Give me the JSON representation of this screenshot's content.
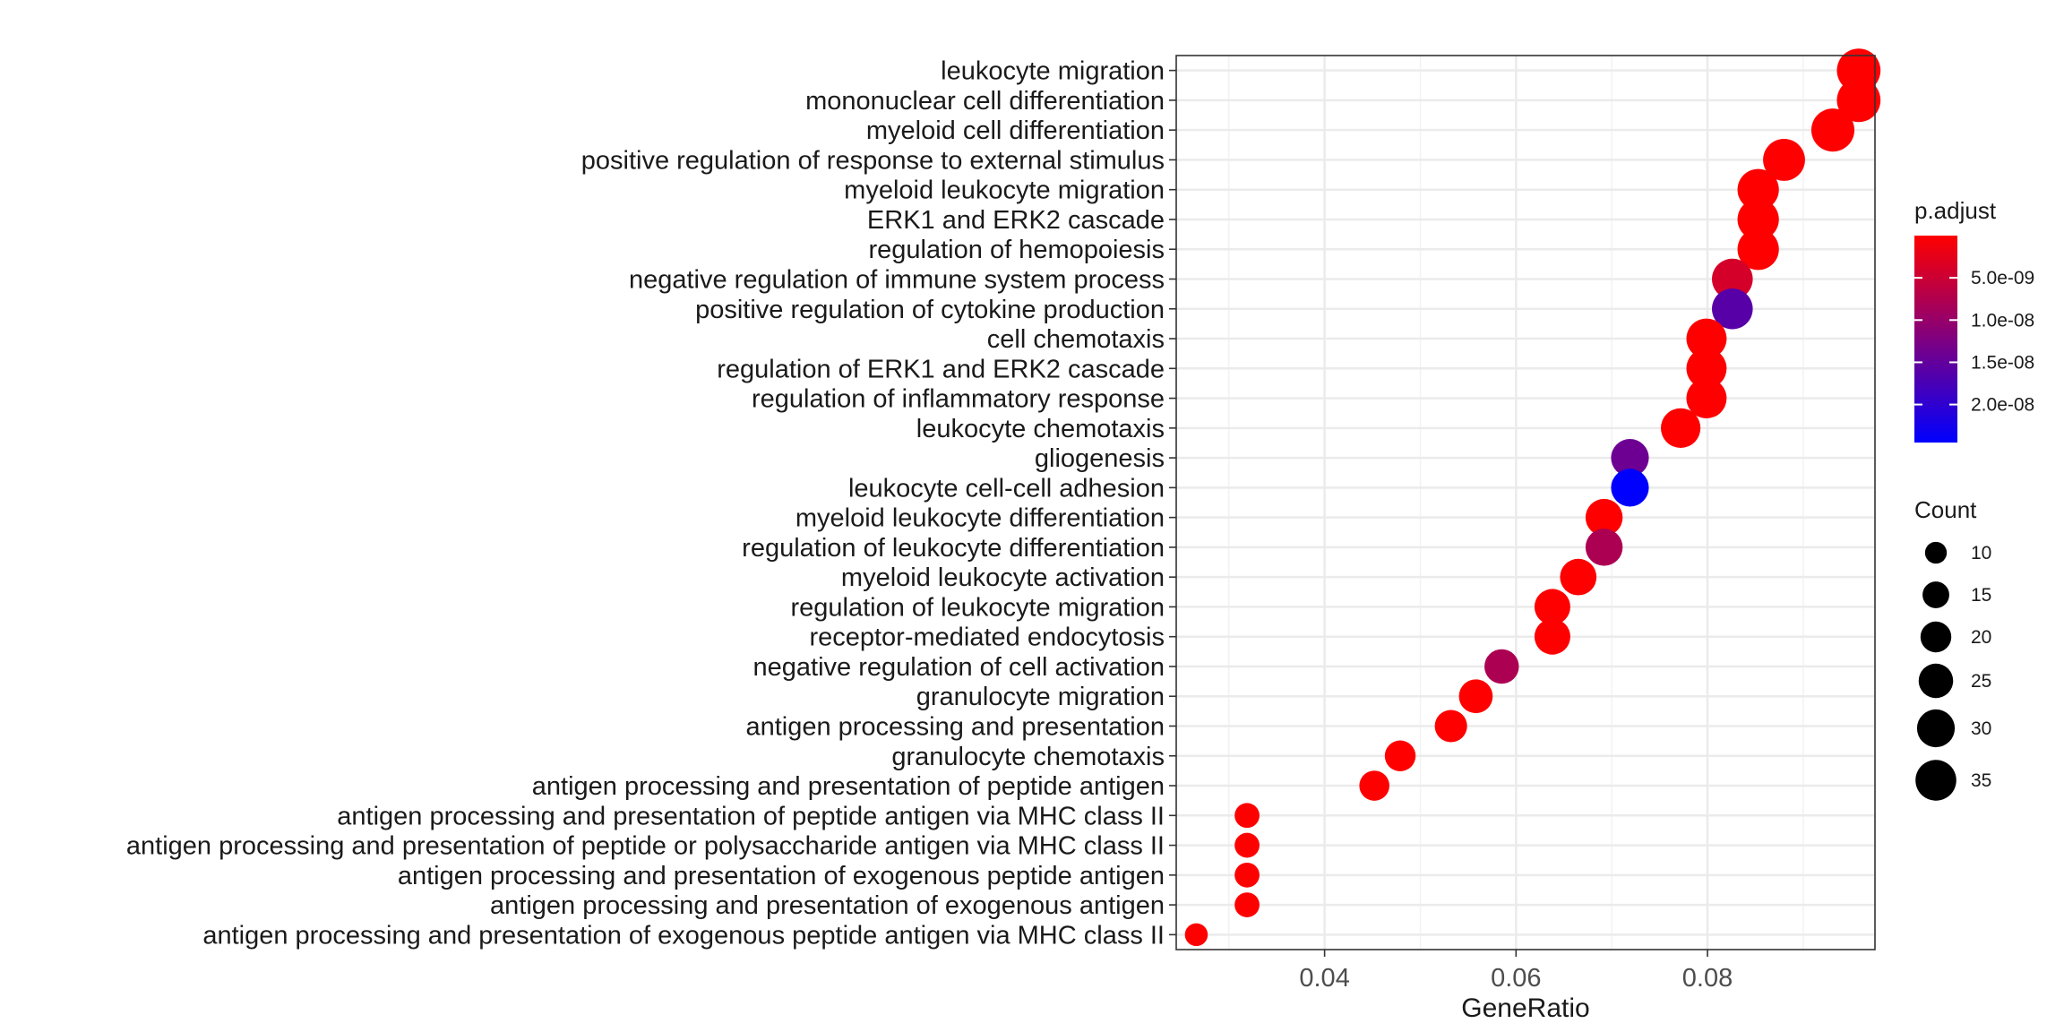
{
  "chart_data": {
    "type": "scatter",
    "title": "",
    "xlabel": "GeneRatio",
    "ylabel": "",
    "xlim": [
      0.0245,
      0.0975
    ],
    "xticks": [
      0.04,
      0.06,
      0.08
    ],
    "xtick_labels": [
      "0.04",
      "0.06",
      "0.08"
    ],
    "grid": true,
    "color_by": "p.adjust",
    "size_by": "Count",
    "colors": {
      "low": "#FF0000",
      "high": "#0000FF"
    },
    "color_legend": {
      "title": "p.adjust",
      "domain": [
        1e-13,
        2.45e-08
      ],
      "ticks": [
        5e-09,
        1e-08,
        1.5e-08,
        2e-08
      ],
      "tick_labels": [
        "5.0e-09",
        "1.0e-08",
        "1.5e-08",
        "2.0e-08"
      ]
    },
    "size_legend": {
      "title": "Count",
      "values": [
        10,
        15,
        20,
        25,
        30,
        35
      ],
      "labels": [
        "10",
        "15",
        "20",
        "25",
        "30",
        "35"
      ]
    },
    "points": [
      {
        "term": "leukocyte migration",
        "gene_ratio": 0.0958,
        "count": 40,
        "p_adjust": 1e-13
      },
      {
        "term": "mononuclear cell differentiation",
        "gene_ratio": 0.0958,
        "count": 40,
        "p_adjust": 1e-13
      },
      {
        "term": "myeloid cell differentiation",
        "gene_ratio": 0.0931,
        "count": 39,
        "p_adjust": 1e-13
      },
      {
        "term": "positive regulation of response to external stimulus",
        "gene_ratio": 0.088,
        "count": 37,
        "p_adjust": 1e-13
      },
      {
        "term": "myeloid leukocyte migration",
        "gene_ratio": 0.0853,
        "count": 36,
        "p_adjust": 1e-13
      },
      {
        "term": "ERK1 and ERK2 cascade",
        "gene_ratio": 0.0853,
        "count": 36,
        "p_adjust": 1e-13
      },
      {
        "term": "regulation of hemopoiesis",
        "gene_ratio": 0.0853,
        "count": 36,
        "p_adjust": 1e-13
      },
      {
        "term": "negative regulation of immune system process",
        "gene_ratio": 0.0826,
        "count": 35,
        "p_adjust": 4e-09
      },
      {
        "term": "positive regulation of cytokine production",
        "gene_ratio": 0.0826,
        "count": 35,
        "p_adjust": 1.6e-08
      },
      {
        "term": "cell chemotaxis",
        "gene_ratio": 0.0799,
        "count": 34,
        "p_adjust": 1e-13
      },
      {
        "term": "regulation of ERK1 and ERK2 cascade",
        "gene_ratio": 0.0799,
        "count": 34,
        "p_adjust": 1e-13
      },
      {
        "term": "regulation of inflammatory response",
        "gene_ratio": 0.0799,
        "count": 34,
        "p_adjust": 1e-13
      },
      {
        "term": "leukocyte chemotaxis",
        "gene_ratio": 0.0772,
        "count": 33,
        "p_adjust": 1e-13
      },
      {
        "term": "gliogenesis",
        "gene_ratio": 0.0719,
        "count": 30,
        "p_adjust": 1.4e-08
      },
      {
        "term": "leukocyte cell-cell adhesion",
        "gene_ratio": 0.0719,
        "count": 30,
        "p_adjust": 2.45e-08
      },
      {
        "term": "myeloid leukocyte differentiation",
        "gene_ratio": 0.0692,
        "count": 29,
        "p_adjust": 1e-13
      },
      {
        "term": "regulation of leukocyte differentiation",
        "gene_ratio": 0.0692,
        "count": 29,
        "p_adjust": 8e-09
      },
      {
        "term": "myeloid leukocyte activation",
        "gene_ratio": 0.0665,
        "count": 28,
        "p_adjust": 1e-13
      },
      {
        "term": "regulation of leukocyte migration",
        "gene_ratio": 0.0638,
        "count": 27,
        "p_adjust": 1e-13
      },
      {
        "term": "receptor-mediated endocytosis",
        "gene_ratio": 0.0638,
        "count": 27,
        "p_adjust": 1e-13
      },
      {
        "term": "negative regulation of cell activation",
        "gene_ratio": 0.0585,
        "count": 25,
        "p_adjust": 8e-09
      },
      {
        "term": "granulocyte migration",
        "gene_ratio": 0.0558,
        "count": 24,
        "p_adjust": 1e-13
      },
      {
        "term": "antigen processing and presentation",
        "gene_ratio": 0.0532,
        "count": 22,
        "p_adjust": 1e-13
      },
      {
        "term": "granulocyte chemotaxis",
        "gene_ratio": 0.0479,
        "count": 20,
        "p_adjust": 1e-13
      },
      {
        "term": "antigen processing and presentation of peptide antigen",
        "gene_ratio": 0.0452,
        "count": 19,
        "p_adjust": 1e-13
      },
      {
        "term": "antigen processing and presentation of peptide antigen via MHC class II",
        "gene_ratio": 0.0319,
        "count": 13,
        "p_adjust": 1e-13
      },
      {
        "term": "antigen processing and presentation of peptide or polysaccharide antigen via MHC class II",
        "gene_ratio": 0.0319,
        "count": 13,
        "p_adjust": 1e-13
      },
      {
        "term": "antigen processing and presentation of exogenous peptide antigen",
        "gene_ratio": 0.0319,
        "count": 13,
        "p_adjust": 1e-13
      },
      {
        "term": "antigen processing and presentation of exogenous antigen",
        "gene_ratio": 0.0319,
        "count": 13,
        "p_adjust": 1e-13
      },
      {
        "term": "antigen processing and presentation of exogenous peptide antigen via MHC class II",
        "gene_ratio": 0.0266,
        "count": 11,
        "p_adjust": 1e-13
      }
    ]
  }
}
